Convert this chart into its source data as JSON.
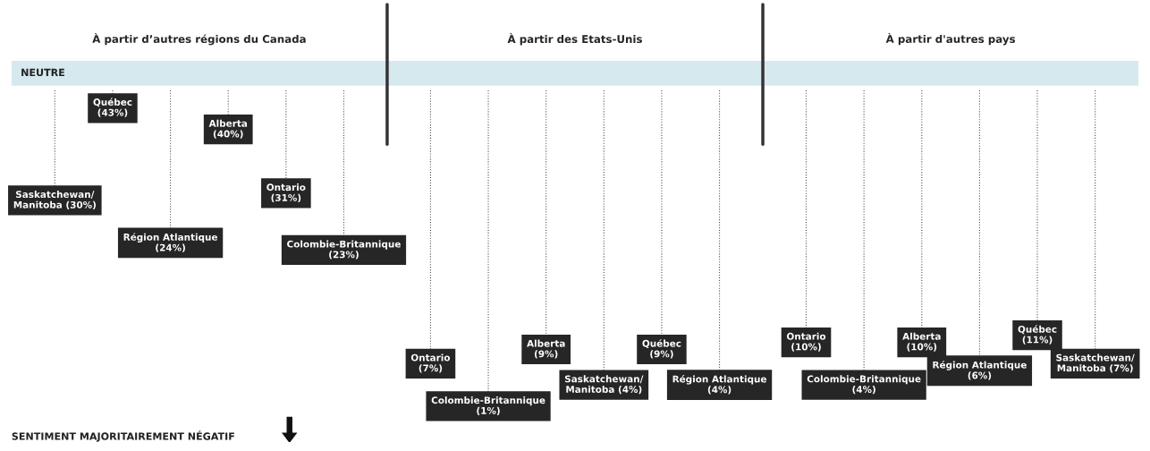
{
  "chart_data": [
    {
      "type": "other",
      "title": "À partir d’autres régions du Canada",
      "categories": [
        "Saskatchewan/",
        "Québec",
        "Région Atlantique",
        "Alberta",
        "Ontario",
        "Colombie-Britannique"
      ],
      "values": [
        30,
        43,
        24,
        40,
        31,
        23
      ],
      "value_labels": [
        "Manitoba (30%)",
        "(43%)",
        "(24%)",
        "(40%)",
        "(31%)",
        "(23%)"
      ],
      "color": "#262626",
      "annotations": [
        "NEUTRE",
        "SENTIMENT MAJORITAIREMENT NÉGATIF"
      ]
    },
    {
      "type": "other",
      "title": "À partir des Etats-Unis",
      "categories": [
        "Ontario",
        "Colombie-Britannique",
        "Alberta",
        "Saskatchewan/",
        "Québec",
        "Région Atlantique"
      ],
      "values": [
        7,
        1,
        9,
        4,
        9,
        4
      ],
      "value_labels": [
        "(7%)",
        "(1%)",
        "(9%)",
        "Manitoba (4%)",
        "(9%)",
        "(4%)"
      ],
      "color": "#262626"
    },
    {
      "type": "other",
      "title": "À partir d'autres pays",
      "categories": [
        "Ontario",
        "Colombie-Britannique",
        "Alberta",
        "Région Atlantique",
        "Québec",
        "Saskatchewan/"
      ],
      "values": [
        10,
        4,
        10,
        6,
        11,
        7
      ],
      "value_labels": [
        "(10%)",
        "(4%)",
        "(10%)",
        "(6%)",
        "(11%)",
        "Manitoba (7%)"
      ],
      "color": "#262626"
    }
  ]
}
